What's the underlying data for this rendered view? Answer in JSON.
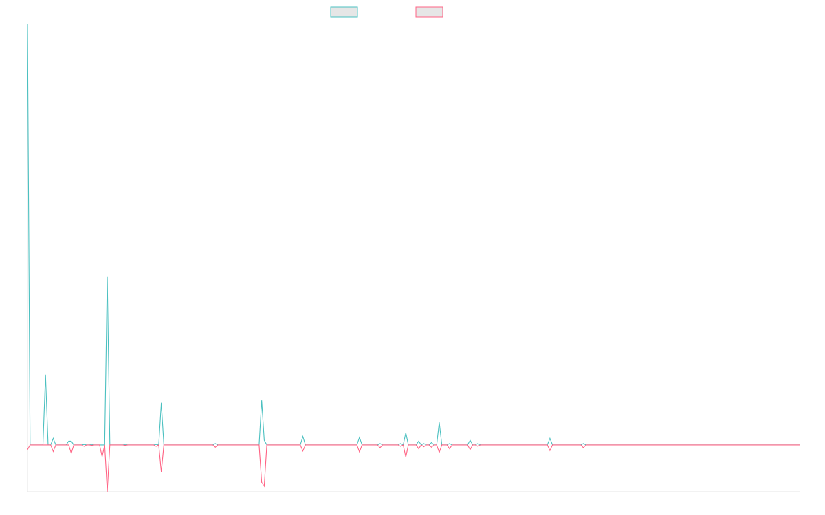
{
  "chart_data": {
    "type": "line",
    "title": "",
    "xlabel": "",
    "ylabel": "",
    "x_count": 301,
    "ylim": [
      -10,
      90
    ],
    "grid": false,
    "legend_position": "top-center",
    "series": [
      {
        "color": "#4bc0c0",
        "spikes": [
          [
            0,
            90
          ],
          [
            7,
            15
          ],
          [
            10,
            1.4
          ],
          [
            16,
            0.8
          ],
          [
            17,
            0.8
          ],
          [
            22,
            0.1
          ],
          [
            25,
            0.1
          ],
          [
            31,
            36
          ],
          [
            38,
            0.1
          ],
          [
            50,
            0.1
          ],
          [
            52,
            9
          ],
          [
            73,
            0.3
          ],
          [
            91,
            9.5
          ],
          [
            92,
            1
          ],
          [
            107,
            1.8
          ],
          [
            129,
            1.6
          ],
          [
            137,
            0.3
          ],
          [
            145,
            0.3
          ],
          [
            147,
            2.6
          ],
          [
            152,
            0.8
          ],
          [
            154,
            0.3
          ],
          [
            157,
            0.5
          ],
          [
            160,
            4.8
          ],
          [
            164,
            0.3
          ],
          [
            172,
            1
          ],
          [
            175,
            0.3
          ],
          [
            203,
            1.4
          ],
          [
            216,
            0.3
          ]
        ],
        "values_default": 0
      },
      {
        "color": "#ff6384",
        "spikes": [
          [
            0,
            -1
          ],
          [
            10,
            -1.4
          ],
          [
            17,
            -1.8
          ],
          [
            22,
            -0.3
          ],
          [
            25,
            -0.1
          ],
          [
            29,
            -2.5
          ],
          [
            31,
            -10
          ],
          [
            38,
            -0.1
          ],
          [
            50,
            -0.3
          ],
          [
            52,
            -5.8
          ],
          [
            73,
            -0.5
          ],
          [
            91,
            -8
          ],
          [
            92,
            -8.8
          ],
          [
            107,
            -1.3
          ],
          [
            129,
            -1.5
          ],
          [
            137,
            -0.6
          ],
          [
            145,
            -0.3
          ],
          [
            147,
            -2.6
          ],
          [
            152,
            -0.8
          ],
          [
            154,
            -0.4
          ],
          [
            157,
            -0.5
          ],
          [
            160,
            -1.6
          ],
          [
            164,
            -0.8
          ],
          [
            172,
            -1
          ],
          [
            175,
            -0.3
          ],
          [
            203,
            -1.2
          ],
          [
            216,
            -0.6
          ]
        ],
        "values_default": 0
      }
    ]
  }
}
